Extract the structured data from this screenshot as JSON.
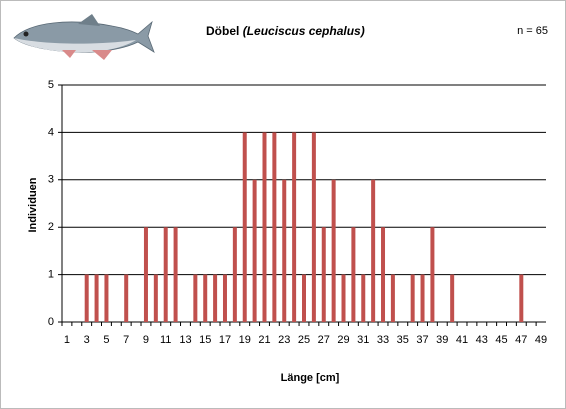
{
  "chart_data": {
    "type": "bar",
    "title": "Döbel",
    "title_italic": "(Leuciscus cephalus)",
    "annotation": "n = 65",
    "x_label": "Länge [cm]",
    "y_label": "Individuen",
    "categories": [
      "1",
      null,
      "3",
      null,
      "5",
      null,
      "7",
      null,
      "9",
      null,
      "11",
      null,
      "13",
      null,
      "15",
      null,
      "17",
      null,
      "19",
      null,
      "21",
      null,
      "23",
      null,
      "25",
      null,
      "27",
      null,
      "29",
      null,
      "31",
      null,
      "33",
      null,
      "35",
      null,
      "37",
      null,
      "39",
      null,
      "41",
      null,
      "43",
      null,
      "45",
      null,
      "47",
      null,
      "49"
    ],
    "values": [
      0,
      0,
      1,
      1,
      1,
      0,
      1,
      0,
      2,
      1,
      2,
      2,
      0,
      1,
      1,
      1,
      1,
      2,
      4,
      3,
      4,
      4,
      3,
      4,
      1,
      4,
      2,
      3,
      1,
      2,
      1,
      3,
      2,
      1,
      0,
      1,
      1,
      2,
      0,
      1,
      0,
      0,
      0,
      0,
      0,
      0,
      1,
      0,
      0
    ],
    "color": "#c0504d",
    "ylim": [
      0,
      5
    ],
    "yticks": [
      0,
      1,
      2,
      3,
      4,
      5
    ],
    "grid": true
  }
}
